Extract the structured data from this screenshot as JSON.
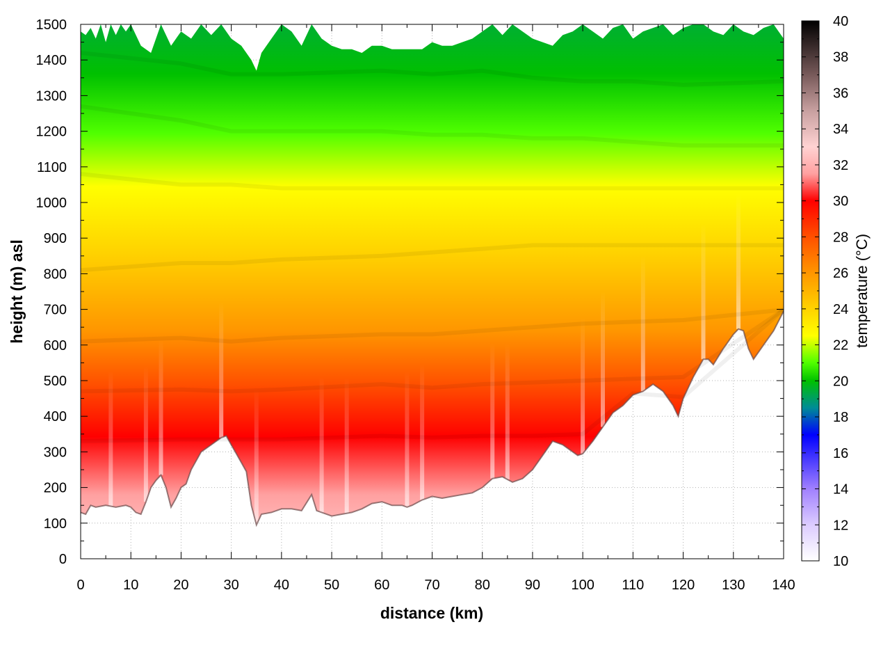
{
  "chart_data": {
    "type": "heatmap",
    "title": "",
    "xlabel": "distance (km)",
    "ylabel": "height (m) asl",
    "colorbar_label": "temperature (°C)",
    "xlim": [
      0,
      140
    ],
    "ylim": [
      0,
      1500
    ],
    "clim": [
      10,
      40
    ],
    "x_ticks": [
      0,
      10,
      20,
      30,
      40,
      50,
      60,
      70,
      80,
      90,
      100,
      110,
      120,
      130,
      140
    ],
    "y_ticks": [
      0,
      100,
      200,
      300,
      400,
      500,
      600,
      700,
      800,
      900,
      1000,
      1100,
      1200,
      1300,
      1400,
      1500
    ],
    "c_ticks": [
      10,
      12,
      14,
      16,
      18,
      20,
      22,
      24,
      26,
      28,
      30,
      32,
      34,
      36,
      38,
      40
    ],
    "grid": true,
    "colormap": [
      {
        "t": 10,
        "color": "#ffffff"
      },
      {
        "t": 12,
        "color": "#dcccff"
      },
      {
        "t": 14,
        "color": "#a080ff"
      },
      {
        "t": 17,
        "color": "#0000ff"
      },
      {
        "t": 18.5,
        "color": "#008c96"
      },
      {
        "t": 20,
        "color": "#00c000"
      },
      {
        "t": 21,
        "color": "#50ff00"
      },
      {
        "t": 22.5,
        "color": "#ffff00"
      },
      {
        "t": 24,
        "color": "#ffd200"
      },
      {
        "t": 26,
        "color": "#ff9600"
      },
      {
        "t": 28,
        "color": "#ff5000"
      },
      {
        "t": 30,
        "color": "#ff0000"
      },
      {
        "t": 31.5,
        "color": "#ffa0a0"
      },
      {
        "t": 33,
        "color": "#ffd2d2"
      },
      {
        "t": 35,
        "color": "#c8a0a0"
      },
      {
        "t": 37,
        "color": "#785a5a"
      },
      {
        "t": 40,
        "color": "#000000"
      }
    ],
    "terrain_profile_m": {
      "x": [
        0,
        1,
        2,
        3,
        5,
        7,
        9,
        10,
        11,
        12,
        13,
        14,
        15,
        16,
        17,
        18,
        19,
        20,
        21,
        22,
        24,
        26,
        28,
        29,
        30,
        31,
        32,
        33,
        34,
        35,
        36,
        38,
        40,
        42,
        44,
        46,
        47,
        48,
        50,
        52,
        54,
        56,
        58,
        60,
        62,
        64,
        65,
        66,
        68,
        70,
        72,
        74,
        76,
        78,
        80,
        82,
        84,
        86,
        88,
        90,
        92,
        94,
        96,
        98,
        99,
        100,
        102,
        104,
        106,
        108,
        110,
        112,
        114,
        116,
        118,
        119,
        120,
        122,
        124,
        125,
        126,
        128,
        130,
        131,
        132,
        133,
        134,
        136,
        138,
        140
      ],
      "y": [
        130,
        125,
        150,
        145,
        150,
        145,
        150,
        145,
        130,
        125,
        160,
        200,
        220,
        235,
        200,
        145,
        170,
        200,
        210,
        250,
        300,
        320,
        340,
        345,
        320,
        295,
        270,
        245,
        150,
        95,
        125,
        130,
        140,
        140,
        135,
        180,
        135,
        130,
        120,
        125,
        130,
        140,
        155,
        160,
        150,
        150,
        145,
        150,
        165,
        175,
        170,
        175,
        180,
        185,
        200,
        225,
        230,
        215,
        225,
        250,
        290,
        330,
        320,
        300,
        290,
        295,
        330,
        370,
        410,
        430,
        460,
        470,
        490,
        470,
        430,
        400,
        450,
        510,
        560,
        560,
        545,
        590,
        630,
        645,
        640,
        590,
        560,
        600,
        640,
        695
      ]
    },
    "isotherms_m": [
      {
        "t": 30,
        "x": [
          0,
          20,
          30,
          40,
          60,
          70,
          80,
          90,
          100,
          110,
          120,
          140
        ],
        "y": [
          330,
          335,
          335,
          335,
          345,
          340,
          345,
          345,
          350,
          350,
          350,
          350
        ]
      },
      {
        "t": 28,
        "x": [
          0,
          20,
          30,
          40,
          60,
          70,
          80,
          90,
          100,
          110,
          120,
          140
        ],
        "y": [
          470,
          475,
          470,
          475,
          490,
          480,
          490,
          495,
          500,
          505,
          510,
          515
        ]
      },
      {
        "t": 26,
        "x": [
          0,
          20,
          30,
          40,
          60,
          70,
          80,
          90,
          100,
          110,
          120,
          140
        ],
        "y": [
          610,
          620,
          610,
          620,
          630,
          630,
          640,
          650,
          660,
          665,
          670,
          670
        ]
      },
      {
        "t": 24,
        "x": [
          0,
          20,
          30,
          40,
          60,
          70,
          80,
          90,
          100,
          110,
          120,
          140
        ],
        "y": [
          810,
          830,
          830,
          840,
          850,
          860,
          870,
          880,
          880,
          880,
          880,
          880
        ]
      },
      {
        "t": 22.5,
        "x": [
          0,
          20,
          30,
          40,
          60,
          70,
          80,
          90,
          100,
          110,
          120,
          140
        ],
        "y": [
          1080,
          1050,
          1050,
          1040,
          1040,
          1040,
          1040,
          1040,
          1040,
          1040,
          1040,
          1040
        ]
      },
      {
        "t": 21,
        "x": [
          0,
          20,
          30,
          40,
          60,
          70,
          80,
          90,
          100,
          110,
          120,
          140
        ],
        "y": [
          1270,
          1230,
          1200,
          1200,
          1200,
          1190,
          1190,
          1180,
          1180,
          1170,
          1160,
          1160
        ]
      },
      {
        "t": 20,
        "x": [
          0,
          20,
          30,
          40,
          60,
          70,
          80,
          90,
          100,
          110,
          120,
          140
        ],
        "y": [
          1420,
          1390,
          1360,
          1360,
          1370,
          1360,
          1370,
          1350,
          1340,
          1340,
          1330,
          1340
        ]
      }
    ],
    "top_edge_m": {
      "x": [
        0,
        1,
        2,
        3,
        4,
        5,
        6,
        7,
        8,
        9,
        10,
        12,
        14,
        16,
        18,
        20,
        22,
        24,
        26,
        28,
        30,
        32,
        34,
        35,
        36,
        38,
        40,
        42,
        44,
        46,
        48,
        50,
        52,
        54,
        56,
        58,
        60,
        62,
        64,
        66,
        68,
        70,
        72,
        74,
        76,
        78,
        80,
        82,
        84,
        86,
        88,
        90,
        92,
        94,
        96,
        98,
        100,
        102,
        104,
        106,
        108,
        110,
        112,
        114,
        116,
        118,
        120,
        122,
        124,
        126,
        128,
        130,
        132,
        134,
        136,
        138,
        140
      ],
      "y": [
        1480,
        1470,
        1490,
        1460,
        1500,
        1450,
        1500,
        1470,
        1500,
        1480,
        1500,
        1440,
        1420,
        1500,
        1440,
        1480,
        1460,
        1500,
        1470,
        1500,
        1460,
        1440,
        1400,
        1370,
        1420,
        1460,
        1500,
        1480,
        1440,
        1500,
        1460,
        1440,
        1430,
        1430,
        1420,
        1440,
        1440,
        1430,
        1430,
        1430,
        1430,
        1450,
        1440,
        1440,
        1450,
        1460,
        1480,
        1500,
        1470,
        1500,
        1480,
        1460,
        1450,
        1440,
        1470,
        1480,
        1500,
        1480,
        1460,
        1490,
        1500,
        1460,
        1480,
        1490,
        1500,
        1470,
        1490,
        1500,
        1500,
        1480,
        1470,
        1500,
        1480,
        1470,
        1490,
        1500,
        1460
      ]
    },
    "warm_streaks_km": [
      6,
      13,
      16,
      28,
      35,
      48,
      53,
      65,
      68,
      82,
      85,
      100,
      104,
      112,
      124,
      131
    ]
  }
}
